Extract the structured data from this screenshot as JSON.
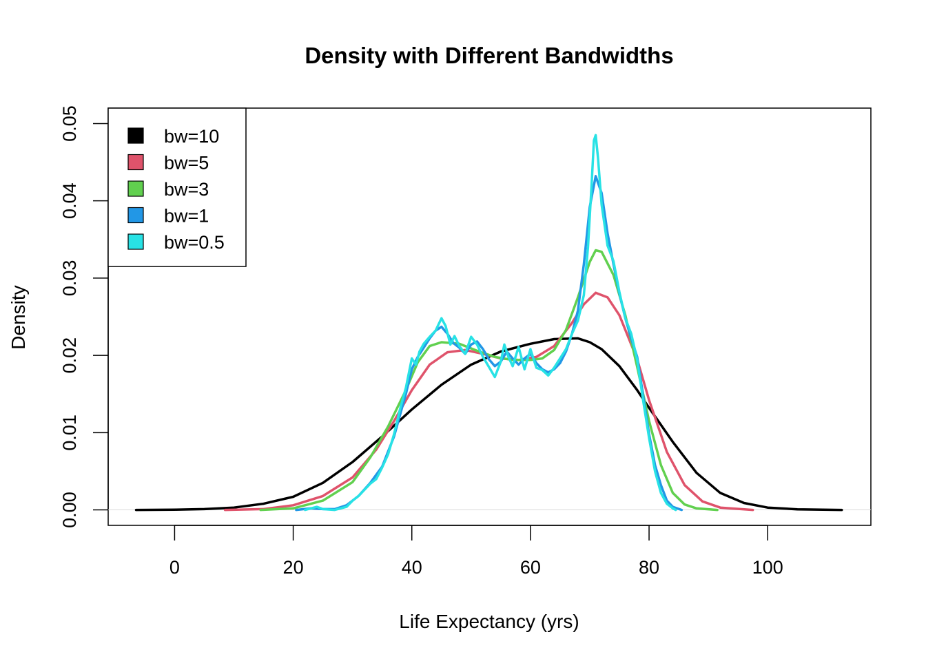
{
  "chart_data": {
    "type": "line",
    "title": "Density with Different Bandwidths",
    "xlabel": "Life Expectancy (yrs)",
    "ylabel": "Density",
    "xlim": [
      -11.2,
      117.4
    ],
    "ylim": [
      -0.002,
      0.052
    ],
    "x_ticks": [
      0,
      20,
      40,
      60,
      80,
      100
    ],
    "y_ticks": [
      0,
      0.01,
      0.02,
      0.03,
      0.04,
      0.05
    ],
    "x_tick_labels": [
      "0",
      "20",
      "40",
      "60",
      "80",
      "100"
    ],
    "y_tick_labels": [
      "0.00",
      "0.01",
      "0.02",
      "0.03",
      "0.04",
      "0.05"
    ],
    "grid": false,
    "legend_position": "top-left",
    "series": [
      {
        "name": "bw=10",
        "color": "#000000",
        "points": [
          [
            -6.5,
            0.0
          ],
          [
            0,
            3e-05
          ],
          [
            5,
            0.0001
          ],
          [
            10,
            0.0003
          ],
          [
            15,
            0.0008
          ],
          [
            20,
            0.0017
          ],
          [
            25,
            0.0035
          ],
          [
            30,
            0.0062
          ],
          [
            35,
            0.0095
          ],
          [
            40,
            0.013
          ],
          [
            45,
            0.0162
          ],
          [
            50,
            0.0188
          ],
          [
            55,
            0.0205
          ],
          [
            60,
            0.0215
          ],
          [
            64,
            0.0221
          ],
          [
            68,
            0.0222
          ],
          [
            70,
            0.0217
          ],
          [
            72,
            0.0208
          ],
          [
            75,
            0.0186
          ],
          [
            78,
            0.0155
          ],
          [
            80,
            0.0132
          ],
          [
            84,
            0.0088
          ],
          [
            88,
            0.0048
          ],
          [
            92,
            0.0022
          ],
          [
            96,
            0.0009
          ],
          [
            100,
            0.0003
          ],
          [
            105,
            8e-05
          ],
          [
            112.5,
            0.0
          ]
        ]
      },
      {
        "name": "bw=5",
        "color": "#DF536B",
        "points": [
          [
            8.5,
            0.0
          ],
          [
            15,
            0.0001
          ],
          [
            20,
            0.0006
          ],
          [
            25,
            0.0018
          ],
          [
            30,
            0.0042
          ],
          [
            34,
            0.0078
          ],
          [
            37,
            0.0115
          ],
          [
            40,
            0.0155
          ],
          [
            43,
            0.0188
          ],
          [
            46,
            0.0204
          ],
          [
            49,
            0.0207
          ],
          [
            52,
            0.0202
          ],
          [
            55,
            0.0196
          ],
          [
            58,
            0.0194
          ],
          [
            61,
            0.0198
          ],
          [
            64,
            0.0212
          ],
          [
            67,
            0.0242
          ],
          [
            69,
            0.0266
          ],
          [
            71,
            0.0281
          ],
          [
            73,
            0.0275
          ],
          [
            75,
            0.0252
          ],
          [
            78,
            0.0195
          ],
          [
            80,
            0.0142
          ],
          [
            83,
            0.0075
          ],
          [
            86,
            0.0032
          ],
          [
            89,
            0.0011
          ],
          [
            92,
            0.0003
          ],
          [
            97.5,
            0.0
          ]
        ]
      },
      {
        "name": "bw=3",
        "color": "#61D04F",
        "points": [
          [
            14.5,
            0.0
          ],
          [
            20,
            0.0002
          ],
          [
            25,
            0.0012
          ],
          [
            30,
            0.0036
          ],
          [
            33,
            0.0068
          ],
          [
            36,
            0.0108
          ],
          [
            39,
            0.0155
          ],
          [
            41,
            0.0191
          ],
          [
            43,
            0.0212
          ],
          [
            45,
            0.0217
          ],
          [
            48,
            0.0215
          ],
          [
            51,
            0.0206
          ],
          [
            54,
            0.0198
          ],
          [
            57,
            0.0194
          ],
          [
            60,
            0.0194
          ],
          [
            62,
            0.0196
          ],
          [
            64,
            0.0207
          ],
          [
            66,
            0.0233
          ],
          [
            68,
            0.0275
          ],
          [
            70,
            0.0321
          ],
          [
            71,
            0.0336
          ],
          [
            72,
            0.0334
          ],
          [
            74,
            0.0304
          ],
          [
            76,
            0.0252
          ],
          [
            78,
            0.0185
          ],
          [
            80,
            0.0115
          ],
          [
            82,
            0.0058
          ],
          [
            84,
            0.0022
          ],
          [
            86,
            0.0007
          ],
          [
            88,
            0.0002
          ],
          [
            91.5,
            0.0
          ]
        ]
      },
      {
        "name": "bw=1",
        "color": "#2297E6",
        "points": [
          [
            20.5,
            0.0
          ],
          [
            23,
            0.0002
          ],
          [
            25,
            0.0001
          ],
          [
            27,
            0.0001
          ],
          [
            29,
            0.0006
          ],
          [
            31,
            0.0018
          ],
          [
            33,
            0.0035
          ],
          [
            35,
            0.0056
          ],
          [
            37,
            0.0095
          ],
          [
            39,
            0.015
          ],
          [
            40,
            0.0182
          ],
          [
            41,
            0.0198
          ],
          [
            42,
            0.021
          ],
          [
            43,
            0.0222
          ],
          [
            44,
            0.0232
          ],
          [
            45,
            0.0237
          ],
          [
            46,
            0.0228
          ],
          [
            47,
            0.0216
          ],
          [
            48,
            0.021
          ],
          [
            49,
            0.0202
          ],
          [
            50,
            0.0214
          ],
          [
            51,
            0.0218
          ],
          [
            52,
            0.0208
          ],
          [
            53,
            0.0195
          ],
          [
            54,
            0.0186
          ],
          [
            55,
            0.0192
          ],
          [
            56,
            0.0205
          ],
          [
            57,
            0.0196
          ],
          [
            58,
            0.0188
          ],
          [
            59,
            0.0196
          ],
          [
            60,
            0.0202
          ],
          [
            61,
            0.019
          ],
          [
            62,
            0.0182
          ],
          [
            63,
            0.0178
          ],
          [
            64,
            0.0182
          ],
          [
            65,
            0.019
          ],
          [
            66,
            0.0205
          ],
          [
            67,
            0.0228
          ],
          [
            68,
            0.0258
          ],
          [
            69,
            0.0318
          ],
          [
            70,
            0.0392
          ],
          [
            71,
            0.0432
          ],
          [
            72,
            0.041
          ],
          [
            73,
            0.0358
          ],
          [
            74,
            0.0318
          ],
          [
            75,
            0.028
          ],
          [
            76,
            0.0248
          ],
          [
            77,
            0.0222
          ],
          [
            78,
            0.0198
          ],
          [
            79,
            0.0148
          ],
          [
            80,
            0.0098
          ],
          [
            81,
            0.0058
          ],
          [
            82,
            0.0032
          ],
          [
            83,
            0.0012
          ],
          [
            84,
            0.0004
          ],
          [
            85.5,
            0.0
          ]
        ]
      },
      {
        "name": "bw=0.5",
        "color": "#28E2E5",
        "points": [
          [
            22,
            0.0
          ],
          [
            23,
            0.0002
          ],
          [
            24,
            0.0004
          ],
          [
            25,
            0.0001
          ],
          [
            27,
            0.0
          ],
          [
            29,
            0.0004
          ],
          [
            30,
            0.0012
          ],
          [
            31,
            0.0018
          ],
          [
            32,
            0.0026
          ],
          [
            33,
            0.0034
          ],
          [
            34,
            0.004
          ],
          [
            35,
            0.0055
          ],
          [
            36,
            0.0072
          ],
          [
            37,
            0.0098
          ],
          [
            38,
            0.013
          ],
          [
            39,
            0.0158
          ],
          [
            40,
            0.0196
          ],
          [
            40.7,
            0.0188
          ],
          [
            41.3,
            0.0205
          ],
          [
            42,
            0.0215
          ],
          [
            43,
            0.0224
          ],
          [
            44,
            0.0232
          ],
          [
            45,
            0.0248
          ],
          [
            45.7,
            0.0238
          ],
          [
            46.5,
            0.0214
          ],
          [
            47.2,
            0.0225
          ],
          [
            48,
            0.0212
          ],
          [
            49,
            0.0202
          ],
          [
            50,
            0.0224
          ],
          [
            51,
            0.0214
          ],
          [
            52,
            0.0198
          ],
          [
            53,
            0.0185
          ],
          [
            54,
            0.0172
          ],
          [
            55,
            0.0192
          ],
          [
            55.6,
            0.0214
          ],
          [
            56.3,
            0.0198
          ],
          [
            57,
            0.0186
          ],
          [
            58,
            0.0211
          ],
          [
            59,
            0.0182
          ],
          [
            60,
            0.0208
          ],
          [
            61,
            0.0184
          ],
          [
            62,
            0.0181
          ],
          [
            63,
            0.0174
          ],
          [
            64,
            0.0184
          ],
          [
            65,
            0.0196
          ],
          [
            66,
            0.0208
          ],
          [
            67,
            0.0228
          ],
          [
            68,
            0.0245
          ],
          [
            69,
            0.0278
          ],
          [
            69.7,
            0.034
          ],
          [
            70.3,
            0.042
          ],
          [
            70.7,
            0.0478
          ],
          [
            71,
            0.0485
          ],
          [
            71.4,
            0.0455
          ],
          [
            72,
            0.0395
          ],
          [
            73,
            0.0342
          ],
          [
            74,
            0.0322
          ],
          [
            75,
            0.0282
          ],
          [
            76,
            0.0248
          ],
          [
            77,
            0.0228
          ],
          [
            78,
            0.0194
          ],
          [
            79,
            0.0142
          ],
          [
            80,
            0.0093
          ],
          [
            81,
            0.005
          ],
          [
            82,
            0.0022
          ],
          [
            83,
            0.0008
          ],
          [
            84,
            0.0002
          ],
          [
            84.5,
            0.0
          ]
        ]
      }
    ]
  }
}
